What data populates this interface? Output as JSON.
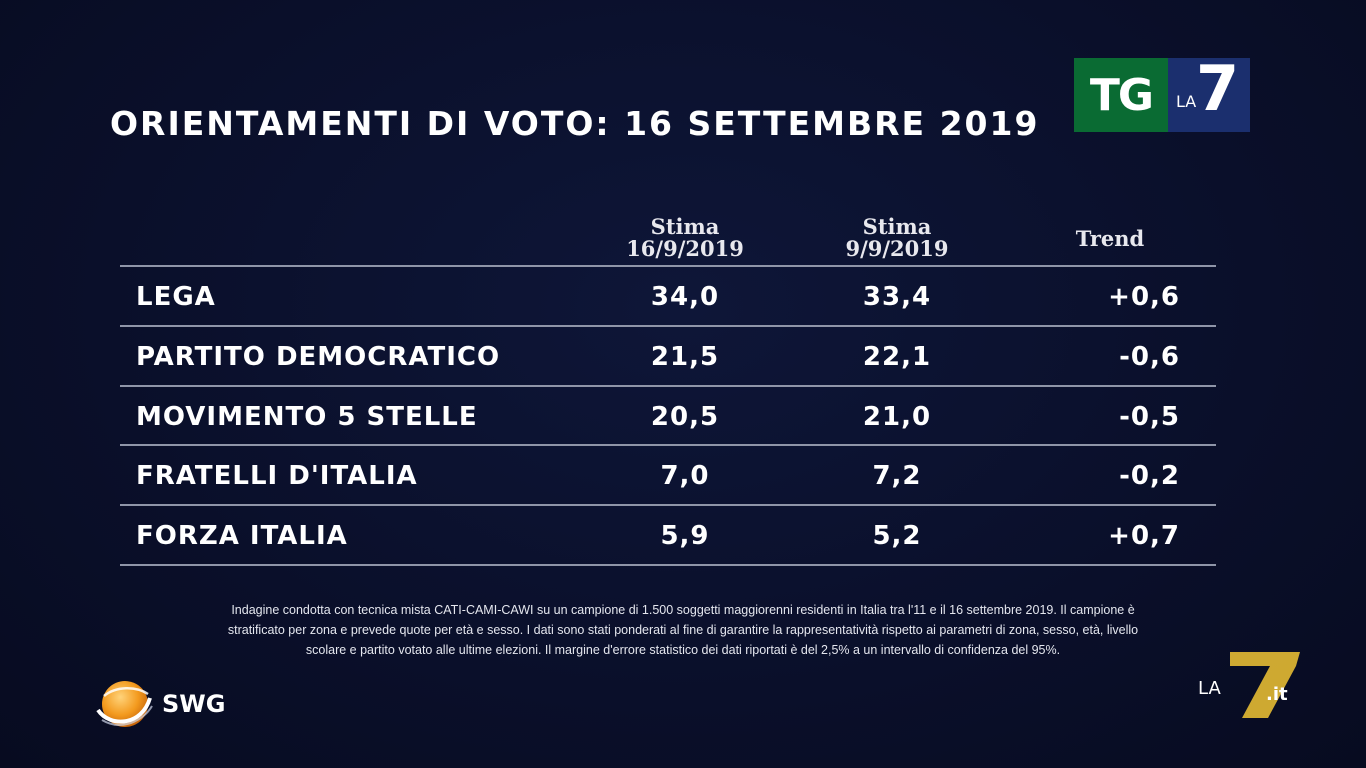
{
  "title": "ORIENTAMENTI DI VOTO: 16 SETTEMBRE 2019",
  "logo_tg": {
    "tg": "TG",
    "la": "LA",
    "seven": "7"
  },
  "table": {
    "headers": {
      "col1_line1": "Stima",
      "col1_line2": "16/9/2019",
      "col2_line1": "Stima",
      "col2_line2": "9/9/2019",
      "col3": "Trend"
    },
    "rows": [
      {
        "party": "LEGA",
        "v1": "34,0",
        "v2": "33,4",
        "trend": "+0,6"
      },
      {
        "party": "PARTITO  DEMOCRATICO",
        "v1": "21,5",
        "v2": "22,1",
        "trend": "-0,6"
      },
      {
        "party": "MOVIMENTO  5  STELLE",
        "v1": "20,5",
        "v2": "21,0",
        "trend": "-0,5"
      },
      {
        "party": "FRATELLI  D'ITALIA",
        "v1": "7,0",
        "v2": "7,2",
        "trend": "-0,2"
      },
      {
        "party": "FORZA  ITALIA",
        "v1": "5,9",
        "v2": "5,2",
        "trend": "+0,7"
      }
    ]
  },
  "footnote": {
    "line1": "Indagine condotta con tecnica mista CATI-CAMI-CAWI su un campione di 1.500 soggetti maggiorenni residenti in Italia tra l'11 e il 16 settembre 2019. Il campione è",
    "line2": "stratificato per zona e prevede quote per età e sesso. I dati sono stati ponderati al fine di garantire la rappresentatività rispetto ai parametri di zona, sesso, età, livello",
    "line3": "scolare e partito votato alle ultime elezioni. Il margine d'errore statistico dei dati riportati è del 2,5% a un intervallo di confidenza del 95%."
  },
  "swg_logo": "SWG",
  "la7it_logo": {
    "la": "LA",
    "seven": "7",
    "it": ".it"
  },
  "colors": {
    "background": "#0a0f2a",
    "tg_green": "#0a6b33",
    "tg_blue": "#1b2f6e",
    "la7_yellow": "#d9b233",
    "swg_orange": "#f39a1e"
  }
}
